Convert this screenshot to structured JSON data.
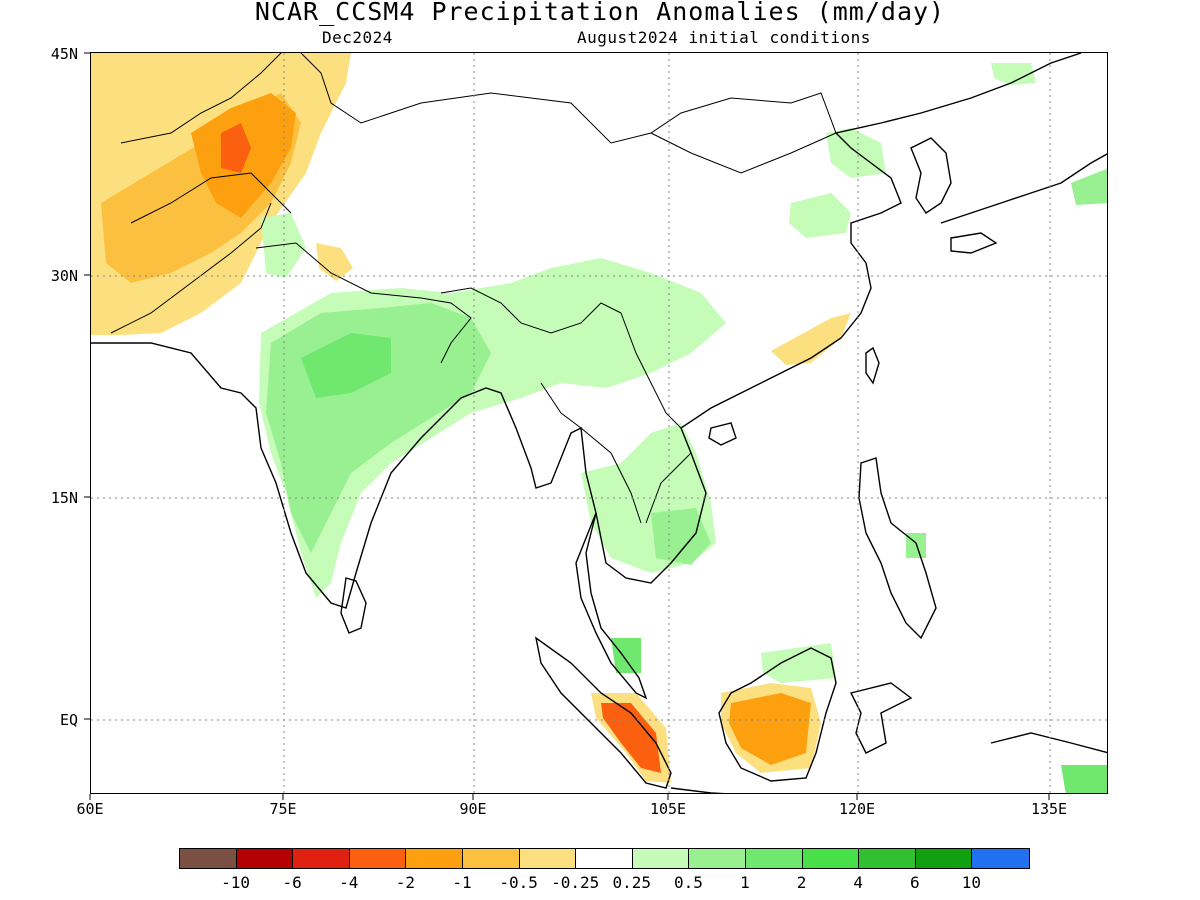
{
  "title": "NCAR_CCSM4 Precipitation Anomalies (mm/day)",
  "subtitle_left": "Dec2024",
  "subtitle_right": "August2024 initial conditions",
  "lat_labels": [
    "45N",
    "30N",
    "15N",
    "EQ"
  ],
  "lon_labels": [
    "60E",
    "75E",
    "90E",
    "105E",
    "120E",
    "135E"
  ],
  "colorbar": {
    "colors": [
      "#7a5045",
      "#b40000",
      "#e02010",
      "#fa6010",
      "#fca010",
      "#fcc040",
      "#fce080",
      "#ffffff",
      "#c4fcb8",
      "#98f090",
      "#70e870",
      "#48e048",
      "#30c030",
      "#10a010",
      "#2070f0"
    ],
    "ticks": [
      "-10",
      "-6",
      "-4",
      "-2",
      "-1",
      "-0.5",
      "-0.25",
      "0.25",
      "0.5",
      "1",
      "2",
      "4",
      "6",
      "10"
    ]
  },
  "legend_colors": {
    "dry_light": "#fce080",
    "dry_medium": "#fcc040",
    "dry_strong": "#fca010",
    "dry_heavy": "#fa6010",
    "wet_light": "#c4fcb8",
    "wet_medium": "#98f090",
    "wet_strong": "#70e870"
  }
}
